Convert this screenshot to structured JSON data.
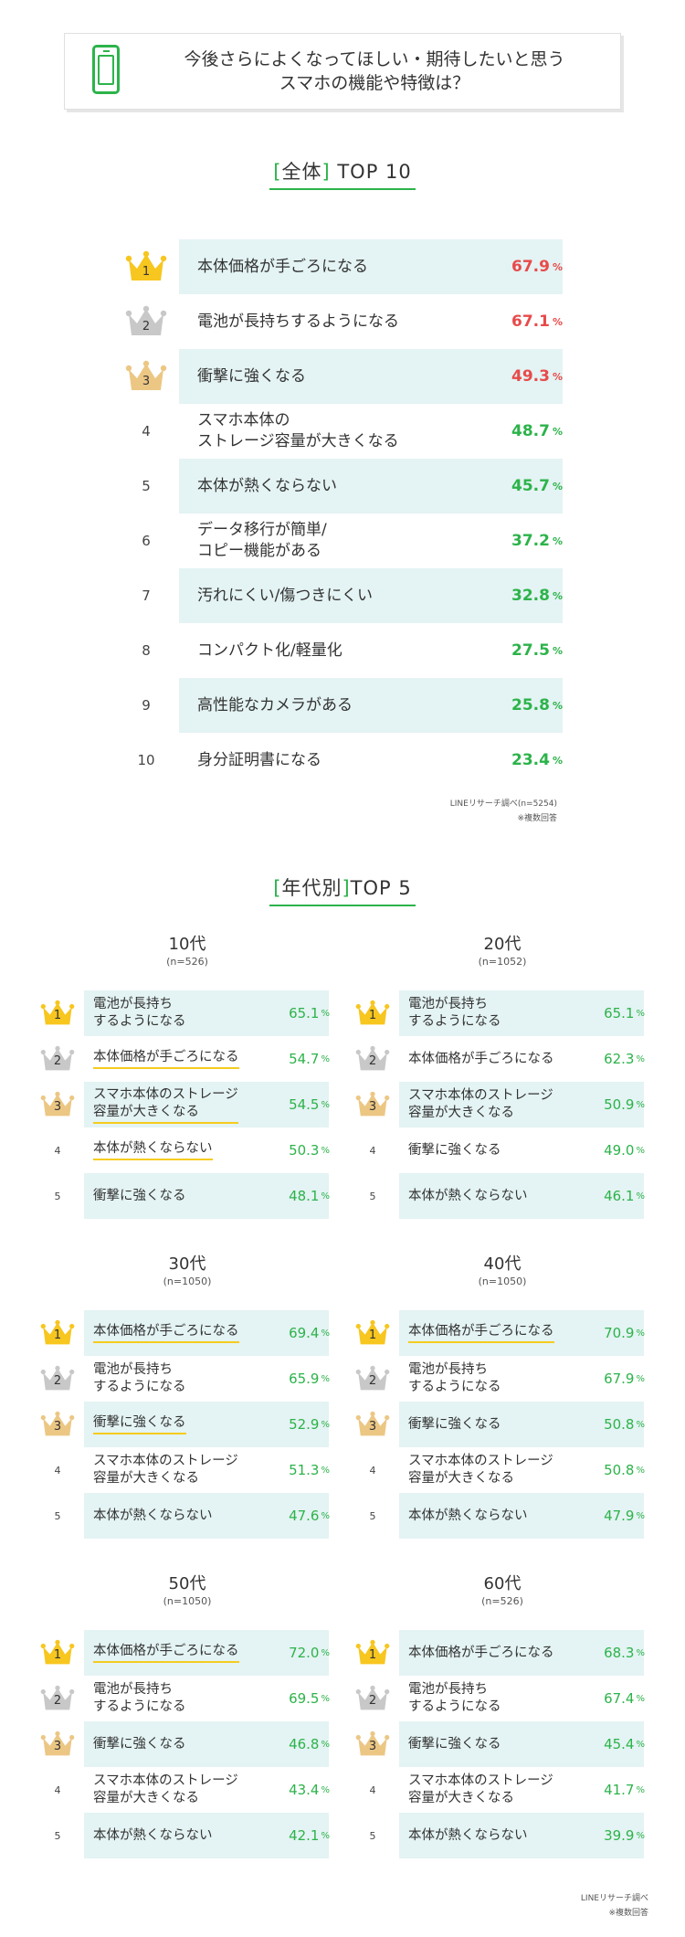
{
  "title": {
    "line1": "今後さらによくなってほしい・期待したいと思う",
    "line2": "スマホの機能や特徴は？"
  },
  "overall": {
    "heading_open": "[",
    "heading_word": "全体",
    "heading_close": "]",
    "heading_rest": " TOP 10",
    "source": "LINEリサーチ調べ(n=5254)",
    "note": "※複数回答"
  },
  "by_age": {
    "heading_open": "[",
    "heading_word": "年代別",
    "heading_close": "]",
    "heading_rest": "TOP 5",
    "source": "LINEリサーチ調べ",
    "note": "※複数回答"
  },
  "pct": "%",
  "colors": {
    "accent": "#2cb34a",
    "highlight": "#e84a4a",
    "shade": "#e4f3f3",
    "gold": "#f7c61f",
    "silver": "#c8c8c8",
    "bronze": "#ecc784"
  },
  "chart_data": [
    {
      "type": "table",
      "title": "全体 TOP 10",
      "ranks": [
        "1",
        "2",
        "3",
        "4",
        "5",
        "6",
        "7",
        "8",
        "9",
        "10"
      ],
      "categories": [
        "本体価格が手ごろになる",
        "電池が長持ちするようになる",
        "衝撃に強くなる",
        "スマホ本体の\nストレージ容量が大きくなる",
        "本体が熱くならない",
        "データ移行が簡単/\nコピー機能がある",
        "汚れにくい/傷つきにくい",
        "コンパクト化/軽量化",
        "高性能なカメラがある",
        "身分証明書になる"
      ],
      "values": [
        "67.9",
        "67.1",
        "49.3",
        "48.7",
        "45.7",
        "37.2",
        "32.8",
        "27.5",
        "25.8",
        "23.4"
      ],
      "unit": "%"
    },
    {
      "type": "table",
      "title": "10代",
      "n": "(n=526)",
      "categories": [
        "電池が長持ち\nするようになる",
        "本体価格が手ごろになる",
        "スマホ本体のストレージ\n容量が大きくなる",
        "本体が熱くならない",
        "衝撃に強くなる"
      ],
      "values": [
        "65.1",
        "54.7",
        "54.5",
        "50.3",
        "48.1"
      ],
      "unit": "%"
    },
    {
      "type": "table",
      "title": "20代",
      "n": "(n=1052)",
      "categories": [
        "電池が長持ち\nするようになる",
        "本体価格が手ごろになる",
        "スマホ本体のストレージ\n容量が大きくなる",
        "衝撃に強くなる",
        "本体が熱くならない"
      ],
      "values": [
        "65.1",
        "62.3",
        "50.9",
        "49.0",
        "46.1"
      ],
      "unit": "%"
    },
    {
      "type": "table",
      "title": "30代",
      "n": "(n=1050)",
      "categories": [
        "本体価格が手ごろになる",
        "電池が長持ち\nするようになる",
        "衝撃に強くなる",
        "スマホ本体のストレージ\n容量が大きくなる",
        "本体が熱くならない"
      ],
      "values": [
        "69.4",
        "65.9",
        "52.9",
        "51.3",
        "47.6"
      ],
      "unit": "%"
    },
    {
      "type": "table",
      "title": "40代",
      "n": "(n=1050)",
      "categories": [
        "本体価格が手ごろになる",
        "電池が長持ち\nするようになる",
        "衝撃に強くなる",
        "スマホ本体のストレージ\n容量が大きくなる",
        "本体が熱くならない"
      ],
      "values": [
        "70.9",
        "67.9",
        "50.8",
        "50.8",
        "47.9"
      ],
      "unit": "%"
    },
    {
      "type": "table",
      "title": "50代",
      "n": "(n=1050)",
      "categories": [
        "本体価格が手ごろになる",
        "電池が長持ち\nするようになる",
        "衝撃に強くなる",
        "スマホ本体のストレージ\n容量が大きくなる",
        "本体が熱くならない"
      ],
      "values": [
        "72.0",
        "69.5",
        "46.8",
        "43.4",
        "42.1"
      ],
      "unit": "%"
    },
    {
      "type": "table",
      "title": "60代",
      "n": "(n=526)",
      "categories": [
        "本体価格が手ごろになる",
        "電池が長持ち\nするようになる",
        "衝撃に強くなる",
        "スマホ本体のストレージ\n容量が大きくなる",
        "本体が熱くならない"
      ],
      "values": [
        "68.3",
        "67.4",
        "45.4",
        "41.7",
        "39.9"
      ],
      "unit": "%"
    }
  ]
}
